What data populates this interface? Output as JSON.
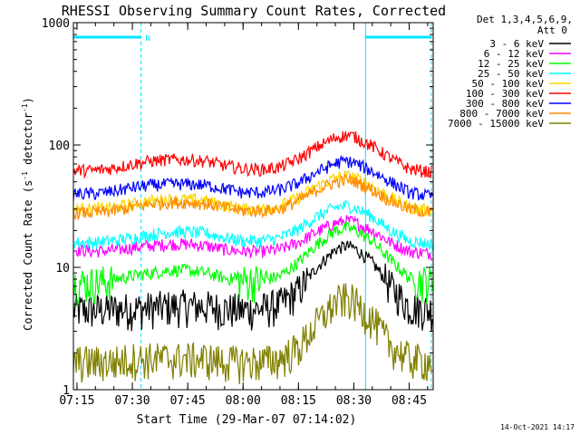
{
  "chart_data": {
    "type": "line",
    "title": "RHESSI Observing Summary Count Rates, Corrected",
    "xlabel": "Start Time (29-Mar-07 07:14:02)",
    "ylabel_main": "Corrected Count Rate (s",
    "ylabel_sup1": "-1",
    "ylabel_mid": " detector",
    "ylabel_sup2": "-1",
    "ylabel_end": ")",
    "yscale": "log",
    "ylim": [
      1,
      1000
    ],
    "xlim": [
      "07:14:02",
      "08:51:30"
    ],
    "x_ticks": [
      "07:15",
      "07:30",
      "07:45",
      "08:00",
      "08:15",
      "08:30",
      "08:45"
    ],
    "y_ticks": [
      "1",
      "10",
      "100",
      "1000"
    ],
    "legend_header_1": "Det 1,3,4,5,6,9,",
    "legend_header_2": "Att 0",
    "legend_position": "right",
    "annotation_N": "N",
    "timestamp": "14-Oct-2021 14:17",
    "marker_times": [
      "07:14:02",
      "07:32:20",
      "08:33:10",
      "08:51:00"
    ],
    "night_bars": [
      {
        "from": "07:14:02",
        "to": "07:32:20"
      },
      {
        "from": "08:33:10",
        "to": "08:51:00"
      }
    ],
    "x_points": [
      "07:14",
      "07:20",
      "07:25",
      "07:30",
      "07:35",
      "07:40",
      "07:45",
      "07:50",
      "07:55",
      "08:00",
      "08:05",
      "08:10",
      "08:15",
      "08:20",
      "08:25",
      "08:28",
      "08:30",
      "08:35",
      "08:40",
      "08:45",
      "08:51"
    ],
    "series": [
      {
        "name": "3 - 6 keV",
        "color": "#000000",
        "values": [
          4.5,
          4.5,
          4.6,
          4.6,
          4.7,
          4.8,
          4.9,
          4.8,
          4.6,
          4.5,
          4.6,
          5,
          6.5,
          10,
          14,
          15,
          14.5,
          11,
          7,
          4.8,
          4.5
        ]
      },
      {
        "name": "6 - 12 keV",
        "color": "#ff00ff",
        "values": [
          14,
          13.5,
          13.8,
          14.5,
          15,
          15.5,
          15.5,
          15,
          14,
          13.5,
          13.5,
          14,
          16,
          19.5,
          23,
          24,
          23.5,
          20,
          16,
          13.5,
          13
        ]
      },
      {
        "name": "12 - 25 keV",
        "color": "#00ff00",
        "values": [
          7.5,
          7.5,
          8,
          8.5,
          9,
          9.5,
          9.5,
          9,
          8.2,
          7.8,
          7.8,
          8.5,
          11,
          15.5,
          20,
          21,
          20.5,
          16.5,
          11.5,
          8.2,
          7.5
        ]
      },
      {
        "name": "25 - 50 keV",
        "color": "#00ffff",
        "values": [
          16,
          16,
          16.5,
          17.5,
          18.5,
          19.5,
          19.5,
          19,
          17.5,
          16.5,
          16.5,
          17.5,
          20.5,
          26,
          31,
          32,
          31,
          26,
          20,
          16.5,
          15.5
        ]
      },
      {
        "name": "50 - 100 keV",
        "color": "#ffd700",
        "values": [
          30,
          30,
          31,
          33,
          35,
          36,
          36,
          35,
          32,
          30,
          30,
          32,
          37,
          46,
          54,
          56,
          55,
          46,
          37,
          31,
          29
        ]
      },
      {
        "name": "100 - 300 keV",
        "color": "#ff0000",
        "values": [
          62,
          62,
          65,
          70,
          74,
          76,
          76,
          74,
          68,
          64,
          63,
          66,
          77,
          96,
          115,
          120,
          118,
          98,
          78,
          64,
          60
        ]
      },
      {
        "name": "300 - 800 keV",
        "color": "#0000ff",
        "values": [
          40,
          40,
          42,
          45,
          47,
          48,
          48,
          47,
          44,
          41,
          41,
          43,
          49,
          60,
          71,
          74,
          72,
          61,
          50,
          41,
          38
        ]
      },
      {
        "name": "800 - 7000 keV",
        "color": "#ff8c00",
        "values": [
          28,
          28,
          29,
          31,
          33,
          34,
          34,
          33,
          31,
          29,
          29,
          30,
          35,
          43,
          50,
          52,
          51,
          43,
          35,
          30,
          28
        ]
      },
      {
        "name": "7000 - 15000 keV",
        "color": "#808000",
        "values": [
          1.7,
          1.7,
          1.7,
          1.8,
          1.8,
          1.8,
          1.8,
          1.8,
          1.7,
          1.7,
          1.7,
          1.8,
          2.2,
          3.5,
          5.2,
          5.6,
          5.3,
          3.8,
          2.3,
          1.8,
          1.7
        ]
      }
    ]
  }
}
